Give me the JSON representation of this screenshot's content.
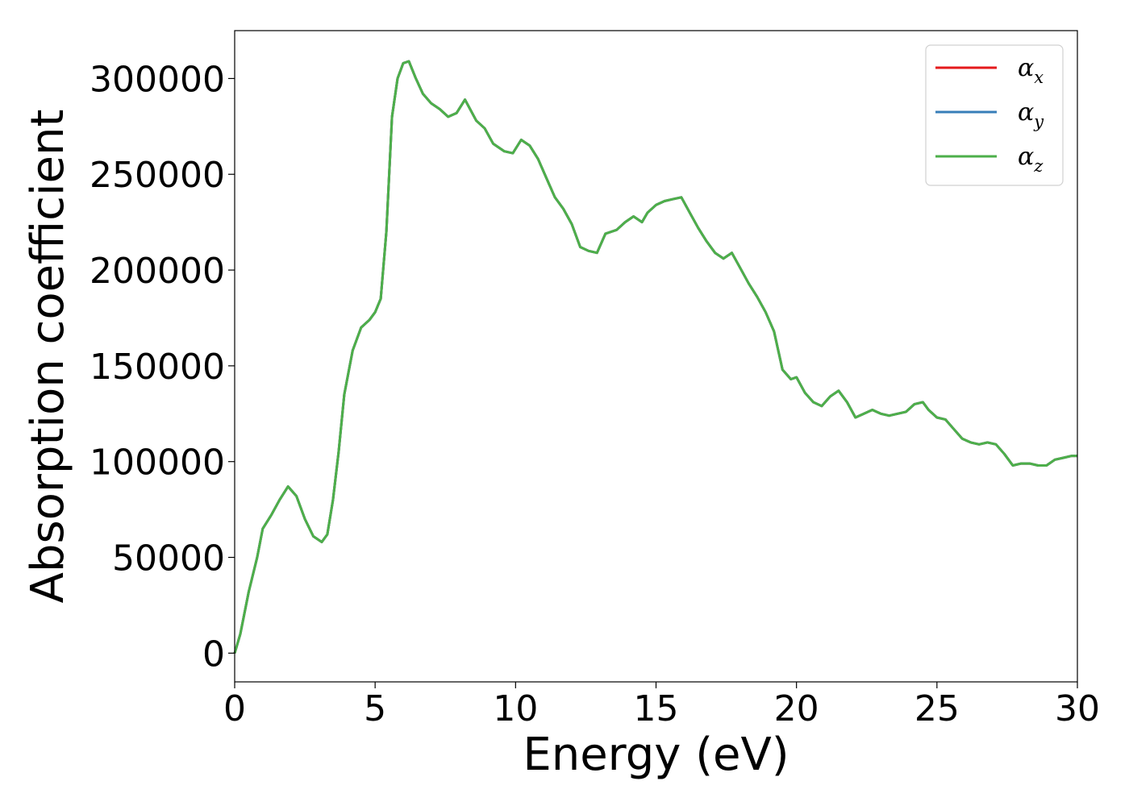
{
  "chart_data": {
    "type": "line",
    "title": "",
    "xlabel": "Energy (eV)",
    "ylabel": "Absorption coefficient",
    "xlim": [
      0,
      30
    ],
    "ylim": [
      -15000,
      325000
    ],
    "xticks": [
      0,
      5,
      10,
      15,
      20,
      25,
      30
    ],
    "xtick_labels": [
      "0",
      "5",
      "10",
      "15",
      "20",
      "25",
      "30"
    ],
    "yticks": [
      0,
      50000,
      100000,
      150000,
      200000,
      250000,
      300000
    ],
    "ytick_labels": [
      "0",
      "50000",
      "100000",
      "150000",
      "200000",
      "250000",
      "300000"
    ],
    "grid": false,
    "legend_position": "top-right",
    "series": [
      {
        "name": "α",
        "subscript": "x",
        "color": "#e41a1c",
        "shares_data_with": "α_z"
      },
      {
        "name": "α",
        "subscript": "y",
        "color": "#377eb8",
        "shares_data_with": "α_z"
      },
      {
        "name": "α",
        "subscript": "z",
        "color": "#4daf4a",
        "shares_data_with": "α_z"
      }
    ],
    "x": [
      0,
      0.2,
      0.5,
      0.8,
      1.0,
      1.3,
      1.6,
      1.9,
      2.2,
      2.5,
      2.8,
      3.1,
      3.3,
      3.5,
      3.7,
      3.9,
      4.2,
      4.5,
      4.8,
      5.0,
      5.2,
      5.4,
      5.6,
      5.8,
      6.0,
      6.2,
      6.45,
      6.7,
      7.0,
      7.3,
      7.6,
      7.9,
      8.2,
      8.6,
      8.9,
      9.2,
      9.6,
      9.9,
      10.2,
      10.5,
      10.8,
      11.1,
      11.4,
      11.7,
      12.0,
      12.3,
      12.6,
      12.9,
      13.2,
      13.6,
      13.9,
      14.2,
      14.5,
      14.7,
      15.0,
      15.3,
      15.6,
      15.9,
      16.2,
      16.5,
      16.8,
      17.1,
      17.4,
      17.7,
      18.0,
      18.3,
      18.6,
      18.9,
      19.2,
      19.5,
      19.8,
      20.0,
      20.3,
      20.6,
      20.9,
      21.2,
      21.5,
      21.8,
      22.1,
      22.4,
      22.7,
      23.0,
      23.3,
      23.6,
      23.9,
      24.2,
      24.5,
      24.7,
      25.0,
      25.3,
      25.6,
      25.9,
      26.2,
      26.5,
      26.8,
      27.1,
      27.4,
      27.7,
      28.0,
      28.3,
      28.6,
      28.9,
      29.2,
      29.5,
      29.8,
      30.0
    ],
    "y": [
      0,
      10000,
      32000,
      50000,
      65000,
      72000,
      80000,
      87000,
      82000,
      70000,
      61000,
      58000,
      62000,
      80000,
      105000,
      135000,
      158000,
      170000,
      174000,
      178000,
      185000,
      220000,
      280000,
      300000,
      308000,
      309000,
      300000,
      292000,
      287000,
      284000,
      280000,
      282000,
      289000,
      278000,
      274000,
      266000,
      262000,
      261000,
      268000,
      265000,
      258000,
      248000,
      238000,
      232000,
      224000,
      212000,
      210000,
      209000,
      219000,
      221000,
      225000,
      228000,
      225000,
      230000,
      234000,
      236000,
      237000,
      238000,
      230000,
      222000,
      215000,
      209000,
      206000,
      209000,
      201000,
      193000,
      186000,
      178000,
      168000,
      148000,
      143000,
      144000,
      136000,
      131000,
      129000,
      134000,
      137000,
      131000,
      123000,
      125000,
      127000,
      125000,
      124000,
      125000,
      126000,
      130000,
      131000,
      127000,
      123000,
      122000,
      117000,
      112000,
      110000,
      109000,
      110000,
      109000,
      104000,
      98000,
      99000,
      99000,
      98000,
      98000,
      101000,
      102000,
      103000,
      103000
    ]
  }
}
